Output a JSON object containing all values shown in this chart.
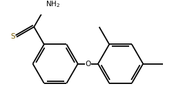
{
  "bg_color": "#ffffff",
  "bond_color": "#000000",
  "text_color": "#000000",
  "S_color": "#7a5c00",
  "figsize": [
    2.52,
    1.51
  ],
  "dpi": 100,
  "ring_r": 0.42,
  "lw": 1.3,
  "cxA": 0.72,
  "cyA": 0.6,
  "cxB": 1.82,
  "cyB": 0.6
}
